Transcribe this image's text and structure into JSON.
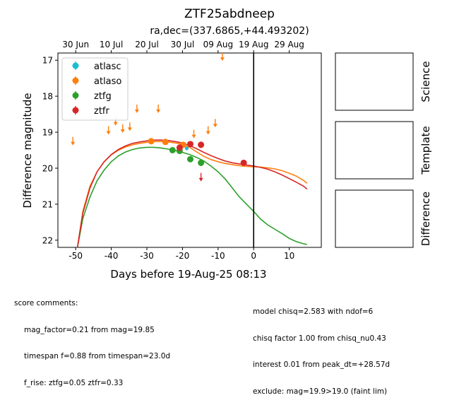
{
  "chart_data": {
    "type": "scatter",
    "title": "ZTF25abdneep",
    "subtitle": "ra,dec=(337.6865,+44.493202)",
    "xlabel": "Days before 19-Aug-25 08:13",
    "ylabel": "Difference magnitude",
    "xlim": [
      -55,
      19
    ],
    "ylim": [
      22.2,
      16.8
    ],
    "y_inverted": true,
    "xticks": [
      -50,
      -40,
      -30,
      -20,
      -10,
      0,
      10
    ],
    "yticks": [
      17,
      18,
      19,
      20,
      21,
      22
    ],
    "top_axis_ticks": [
      {
        "label": "30 Jun",
        "x": -50
      },
      {
        "label": "10 Jul",
        "x": -40
      },
      {
        "label": "20 Jul",
        "x": -30
      },
      {
        "label": "30 Jul",
        "x": -20
      },
      {
        "label": "09 Aug",
        "x": -10
      },
      {
        "label": "19 Aug",
        "x": 0
      },
      {
        "label": "29 Aug",
        "x": 10
      }
    ],
    "vline_x": 0,
    "legend_position": "upper-left",
    "series": [
      {
        "name": "atlasc",
        "color": "#17becf",
        "points": [
          {
            "x": -18.8,
            "y": 19.45,
            "err": 0.05
          }
        ],
        "upper_limits": []
      },
      {
        "name": "atlaso",
        "color": "#ff7f0e",
        "points": [
          {
            "x": -28.8,
            "y": 19.25,
            "err": 0.05
          },
          {
            "x": -24.8,
            "y": 19.27,
            "err": 0.05
          },
          {
            "x": -19.8,
            "y": 19.35,
            "err": 0.06
          }
        ],
        "upper_limits": [
          {
            "x": -50.8,
            "y": 19.25
          },
          {
            "x": -40.8,
            "y": 18.95
          },
          {
            "x": -38.8,
            "y": 18.7
          },
          {
            "x": -36.8,
            "y": 18.9
          },
          {
            "x": -34.8,
            "y": 18.85
          },
          {
            "x": -32.8,
            "y": 18.35
          },
          {
            "x": -26.8,
            "y": 18.35
          },
          {
            "x": -16.8,
            "y": 19.05
          },
          {
            "x": -12.8,
            "y": 18.95
          },
          {
            "x": -10.8,
            "y": 18.75
          },
          {
            "x": -8.8,
            "y": 16.9
          }
        ]
      },
      {
        "name": "ztfg",
        "color": "#2ca02c",
        "points": [
          {
            "x": -22.8,
            "y": 19.5,
            "err": 0.07
          },
          {
            "x": -20.8,
            "y": 19.52,
            "err": 0.07
          },
          {
            "x": -17.8,
            "y": 19.75,
            "err": 0.08
          },
          {
            "x": -14.8,
            "y": 19.85,
            "err": 0.09
          }
        ],
        "upper_limits": []
      },
      {
        "name": "ztfr",
        "color": "#d62728",
        "points": [
          {
            "x": -20.8,
            "y": 19.43,
            "err": 0.07
          },
          {
            "x": -17.8,
            "y": 19.33,
            "err": 0.08
          },
          {
            "x": -14.8,
            "y": 19.35,
            "err": 0.09
          },
          {
            "x": -2.8,
            "y": 19.85,
            "err": 0.08
          }
        ],
        "upper_limits": [
          {
            "x": -14.8,
            "y": 20.25
          }
        ]
      }
    ],
    "model_curves": [
      {
        "name": "atlaso",
        "color": "#ff7f0e",
        "points": [
          [
            -49.5,
            22.2
          ],
          [
            -48,
            21.2
          ],
          [
            -46,
            20.5
          ],
          [
            -44,
            20.1
          ],
          [
            -42,
            19.82
          ],
          [
            -40,
            19.63
          ],
          [
            -38,
            19.5
          ],
          [
            -36,
            19.41
          ],
          [
            -34,
            19.35
          ],
          [
            -32,
            19.31
          ],
          [
            -30,
            19.28
          ],
          [
            -28,
            19.26
          ],
          [
            -26,
            19.26
          ],
          [
            -24,
            19.27
          ],
          [
            -22,
            19.3
          ],
          [
            -20,
            19.34
          ],
          [
            -18,
            19.42
          ],
          [
            -16,
            19.55
          ],
          [
            -14,
            19.67
          ],
          [
            -12,
            19.76
          ],
          [
            -10,
            19.82
          ],
          [
            -8,
            19.87
          ],
          [
            -6,
            19.9
          ],
          [
            -4,
            19.93
          ],
          [
            -2,
            19.95
          ],
          [
            0,
            19.96
          ],
          [
            2,
            19.97
          ],
          [
            4,
            19.99
          ],
          [
            6,
            20.02
          ],
          [
            8,
            20.07
          ],
          [
            10,
            20.14
          ],
          [
            12,
            20.22
          ],
          [
            14,
            20.34
          ],
          [
            15,
            20.42
          ]
        ]
      },
      {
        "name": "ztfg",
        "color": "#2ca02c",
        "points": [
          [
            -49.5,
            22.2
          ],
          [
            -48,
            21.4
          ],
          [
            -46,
            20.8
          ],
          [
            -44,
            20.35
          ],
          [
            -42,
            20.05
          ],
          [
            -40,
            19.82
          ],
          [
            -38,
            19.66
          ],
          [
            -36,
            19.55
          ],
          [
            -34,
            19.48
          ],
          [
            -32,
            19.44
          ],
          [
            -30,
            19.42
          ],
          [
            -28,
            19.42
          ],
          [
            -26,
            19.44
          ],
          [
            -24,
            19.47
          ],
          [
            -22,
            19.51
          ],
          [
            -20,
            19.56
          ],
          [
            -18,
            19.62
          ],
          [
            -16,
            19.7
          ],
          [
            -14,
            19.8
          ],
          [
            -12,
            19.94
          ],
          [
            -10,
            20.1
          ],
          [
            -8,
            20.3
          ],
          [
            -6,
            20.55
          ],
          [
            -4,
            20.8
          ],
          [
            -2,
            21.0
          ],
          [
            0,
            21.2
          ],
          [
            2,
            21.42
          ],
          [
            4,
            21.58
          ],
          [
            6,
            21.7
          ],
          [
            8,
            21.82
          ],
          [
            10,
            21.95
          ],
          [
            12,
            22.04
          ],
          [
            14,
            22.1
          ],
          [
            15,
            22.12
          ]
        ]
      },
      {
        "name": "ztfr",
        "color": "#d62728",
        "points": [
          [
            -49.5,
            22.2
          ],
          [
            -48,
            21.25
          ],
          [
            -46,
            20.55
          ],
          [
            -44,
            20.1
          ],
          [
            -42,
            19.82
          ],
          [
            -40,
            19.62
          ],
          [
            -38,
            19.48
          ],
          [
            -36,
            19.38
          ],
          [
            -34,
            19.31
          ],
          [
            -32,
            19.27
          ],
          [
            -30,
            19.24
          ],
          [
            -28,
            19.22
          ],
          [
            -26,
            19.22
          ],
          [
            -24,
            19.23
          ],
          [
            -22,
            19.26
          ],
          [
            -20,
            19.3
          ],
          [
            -18,
            19.37
          ],
          [
            -16,
            19.46
          ],
          [
            -14,
            19.56
          ],
          [
            -12,
            19.65
          ],
          [
            -10,
            19.73
          ],
          [
            -8,
            19.8
          ],
          [
            -6,
            19.85
          ],
          [
            -4,
            19.88
          ],
          [
            -2,
            19.91
          ],
          [
            0,
            19.94
          ],
          [
            2,
            19.98
          ],
          [
            4,
            20.03
          ],
          [
            6,
            20.1
          ],
          [
            8,
            20.19
          ],
          [
            10,
            20.29
          ],
          [
            12,
            20.39
          ],
          [
            14,
            20.5
          ],
          [
            15,
            20.58
          ]
        ]
      }
    ]
  },
  "panels": [
    {
      "label": "Science"
    },
    {
      "label": "Template"
    },
    {
      "label": "Difference"
    }
  ],
  "comments_left": {
    "heading": "score comments:",
    "lines": [
      "mag_factor=0.21 from mag=19.85",
      "timespan f=0.88 from timespan=23.0d",
      "f_rise: ztfg=0.05 ztfr=0.33"
    ]
  },
  "comments_right": {
    "lines": [
      "model chisq=2.583 with ndof=6",
      "chisq factor 1.00 from chisq_nu0.43",
      "interest 0.01 from peak_dt=+28.57d",
      "exclude: mag=19.9>19.0 (faint lim)"
    ]
  }
}
